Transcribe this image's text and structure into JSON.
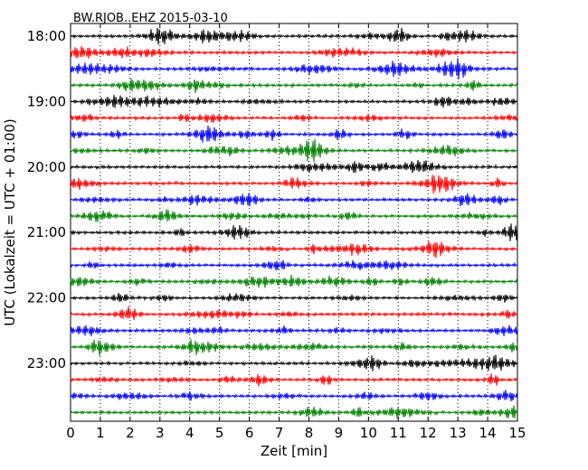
{
  "chart_data": {
    "type": "line",
    "title": "BW.RJOB..EHZ 2015-03-10",
    "xlabel": "Zeit  [min]",
    "ylabel": "UTC (Lokalzeit = UTC + 01:00)",
    "xlim": [
      0,
      15
    ],
    "x_ticks": [
      0,
      1,
      2,
      3,
      4,
      5,
      6,
      7,
      8,
      9,
      10,
      11,
      12,
      13,
      14,
      15
    ],
    "x_tick_labels": [
      "0",
      "1",
      "2",
      "3",
      "4",
      "5",
      "6",
      "7",
      "8",
      "9",
      "10",
      "11",
      "12",
      "13",
      "14",
      "15"
    ],
    "y_tick_labels": [
      "18:00",
      "19:00",
      "20:00",
      "21:00",
      "22:00",
      "23:00"
    ],
    "y_tick_rows": [
      0,
      4,
      8,
      12,
      16,
      20
    ],
    "row_interval_min": 15,
    "rows": [
      "18:00",
      "18:15",
      "18:30",
      "18:45",
      "19:00",
      "19:15",
      "19:30",
      "19:45",
      "20:00",
      "20:15",
      "20:30",
      "20:45",
      "21:00",
      "21:15",
      "21:30",
      "21:45",
      "22:00",
      "22:15",
      "22:30",
      "22:45",
      "23:00",
      "23:15",
      "23:30",
      "23:45"
    ],
    "trace_colors": [
      "#000000",
      "#ff0000",
      "#0000ff",
      "#008000"
    ],
    "grid": "vertical dotted",
    "legend": "none"
  }
}
